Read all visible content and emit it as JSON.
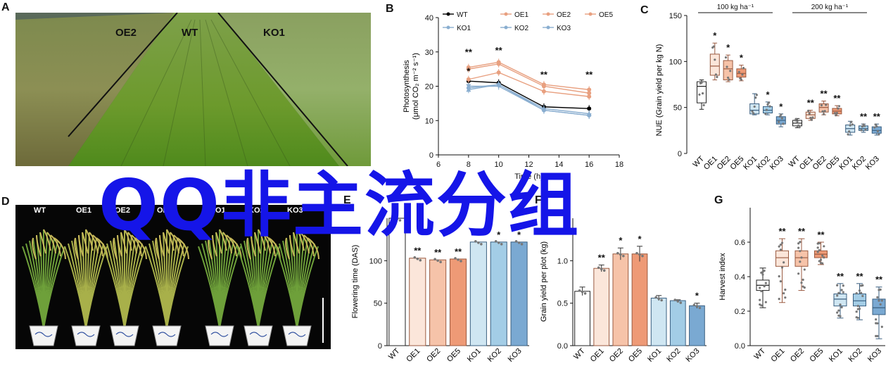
{
  "panels": {
    "a": {
      "letter": "A",
      "labels": [
        "OE2",
        "WT",
        "KO1"
      ]
    },
    "b": {
      "letter": "B"
    },
    "c": {
      "letter": "C"
    },
    "d": {
      "letter": "D",
      "labels": [
        "WT",
        "OE1",
        "OE2",
        "OE5",
        "KO1",
        "KO2",
        "KO3"
      ]
    },
    "e": {
      "letter": "E"
    },
    "f": {
      "letter": "F"
    },
    "g": {
      "letter": "G"
    }
  },
  "watermark": "QQ非主流分组",
  "colors": {
    "wt": "#000000",
    "oe": "#e8a080",
    "ko": "#8aaed0",
    "oe_fill": [
      "#fbe6da",
      "#f6c3a9",
      "#ee9a76"
    ],
    "ko_fill": [
      "#cfe6f2",
      "#a3cde6",
      "#7aa9d2"
    ],
    "watermark": "#1515e8"
  },
  "chart_data": [
    {
      "panel": "B",
      "type": "line",
      "xlabel": "Time (h)",
      "ylabel_line1": "Photosynthesis",
      "ylabel_line2": "(μmol CO₂ m⁻² s⁻¹)",
      "xlim": [
        6,
        18
      ],
      "ylim": [
        0,
        40
      ],
      "xticks": [
        "6",
        "8",
        "10",
        "12",
        "14",
        "16",
        "18"
      ],
      "yticks": [
        "0",
        "10",
        "20",
        "30",
        "40"
      ],
      "x": [
        8,
        10,
        13,
        16
      ],
      "series": [
        {
          "name": "WT",
          "group": "wt",
          "values": [
            21.5,
            21.0,
            14.0,
            13.5
          ]
        },
        {
          "name": "OE1",
          "group": "oe",
          "values": [
            25.5,
            27.0,
            20.5,
            19.0
          ]
        },
        {
          "name": "OE2",
          "group": "oe",
          "values": [
            25.0,
            26.5,
            20.0,
            18.0
          ]
        },
        {
          "name": "OE5",
          "group": "oe",
          "values": [
            22.0,
            24.0,
            18.5,
            17.0
          ]
        },
        {
          "name": "KO1",
          "group": "ko",
          "values": [
            19.0,
            20.5,
            13.5,
            12.0
          ]
        },
        {
          "name": "KO2",
          "group": "ko",
          "values": [
            20.0,
            20.0,
            13.0,
            11.5
          ]
        },
        {
          "name": "KO3",
          "group": "ko",
          "values": [
            19.5,
            20.5,
            13.0,
            11.5
          ]
        }
      ],
      "annotations": [
        {
          "x": 8,
          "y": 29,
          "text": "**"
        },
        {
          "x": 8,
          "y": 23.5,
          "text": "*"
        },
        {
          "x": 10,
          "y": 29.5,
          "text": "**"
        },
        {
          "x": 13,
          "y": 22.5,
          "text": "**"
        },
        {
          "x": 16,
          "y": 22.5,
          "text": "**"
        }
      ],
      "legend": "top"
    },
    {
      "panel": "C",
      "type": "box",
      "ylabel": "NUE (Grain yield per kg N)",
      "ylim": [
        0,
        150
      ],
      "yticks": [
        "0",
        "50",
        "100",
        "150"
      ],
      "group_labels": [
        "100 kg ha⁻¹",
        "200 kg ha⁻¹"
      ],
      "categories": [
        "WT",
        "OE1",
        "OE2",
        "OE5",
        "KO1",
        "KO2",
        "KO3",
        "WT",
        "OE1",
        "OE2",
        "OE5",
        "KO1",
        "KO2",
        "KO3"
      ],
      "boxes": [
        {
          "q1": 55,
          "med": 73,
          "q3": 78,
          "min": 48,
          "max": 80,
          "sig": ""
        },
        {
          "q1": 85,
          "med": 95,
          "q3": 108,
          "min": 80,
          "max": 120,
          "sig": "*"
        },
        {
          "q1": 80,
          "med": 92,
          "q3": 101,
          "min": 78,
          "max": 107,
          "sig": "*"
        },
        {
          "q1": 83,
          "med": 87,
          "q3": 92,
          "min": 79,
          "max": 96,
          "sig": "*"
        },
        {
          "q1": 43,
          "med": 47,
          "q3": 54,
          "min": 42,
          "max": 65,
          "sig": ""
        },
        {
          "q1": 44,
          "med": 47,
          "q3": 51,
          "min": 42,
          "max": 56,
          "sig": "*"
        },
        {
          "q1": 32,
          "med": 36,
          "q3": 40,
          "min": 29,
          "max": 43,
          "sig": "*"
        },
        {
          "q1": 30,
          "med": 33,
          "q3": 36,
          "min": 28,
          "max": 38,
          "sig": ""
        },
        {
          "q1": 38,
          "med": 42,
          "q3": 45,
          "min": 36,
          "max": 47,
          "sig": "**"
        },
        {
          "q1": 45,
          "med": 50,
          "q3": 54,
          "min": 42,
          "max": 57,
          "sig": "**"
        },
        {
          "q1": 43,
          "med": 46,
          "q3": 49,
          "min": 41,
          "max": 52,
          "sig": "**"
        },
        {
          "q1": 23,
          "med": 27,
          "q3": 31,
          "min": 20,
          "max": 35,
          "sig": ""
        },
        {
          "q1": 25,
          "med": 27,
          "q3": 30,
          "min": 23,
          "max": 32,
          "sig": "**"
        },
        {
          "q1": 22,
          "med": 25,
          "q3": 29,
          "min": 20,
          "max": 32,
          "sig": "**"
        }
      ]
    },
    {
      "panel": "E",
      "type": "bar",
      "ylabel": "Flowering time (DAS)",
      "ylim": [
        0,
        150
      ],
      "yticks": [
        "0",
        "50",
        "100"
      ],
      "categories": [
        "WT",
        "OE1",
        "OE2",
        "OE5",
        "KO1",
        "KO2",
        "KO3"
      ],
      "values": [
        150,
        103,
        101,
        102,
        122,
        122,
        122
      ],
      "sig": [
        "",
        "**",
        "**",
        "**",
        "*",
        "*",
        "*"
      ]
    },
    {
      "panel": "F",
      "type": "bar",
      "ylabel": "Grain yield per plot (kg)",
      "ylim": [
        0,
        1.5
      ],
      "yticks": [
        "0.0",
        "0.5",
        "1.0"
      ],
      "categories": [
        "WT",
        "OE1",
        "OE2",
        "OE5",
        "KO1",
        "KO2",
        "KO3"
      ],
      "values": [
        0.64,
        0.91,
        1.08,
        1.08,
        0.56,
        0.53,
        0.47
      ],
      "errors": [
        0.05,
        0.04,
        0.07,
        0.09,
        0.03,
        0.01,
        0.03
      ],
      "sig": [
        "",
        "**",
        "*",
        "*",
        "",
        "",
        "*"
      ]
    },
    {
      "panel": "G",
      "type": "box",
      "ylabel": "Harvest index",
      "ylim": [
        0,
        0.8
      ],
      "yticks": [
        "0.0",
        "0.2",
        "0.4",
        "0.6"
      ],
      "categories": [
        "WT",
        "OE1",
        "OE2",
        "OE5",
        "KO1",
        "KO2",
        "KO3"
      ],
      "boxes": [
        {
          "q1": 0.32,
          "med": 0.35,
          "q3": 0.38,
          "min": 0.22,
          "max": 0.45,
          "sig": ""
        },
        {
          "q1": 0.46,
          "med": 0.51,
          "q3": 0.55,
          "min": 0.25,
          "max": 0.62,
          "sig": "**"
        },
        {
          "q1": 0.46,
          "med": 0.51,
          "q3": 0.55,
          "min": 0.32,
          "max": 0.62,
          "sig": "**"
        },
        {
          "q1": 0.51,
          "med": 0.53,
          "q3": 0.55,
          "min": 0.47,
          "max": 0.6,
          "sig": "**"
        },
        {
          "q1": 0.23,
          "med": 0.27,
          "q3": 0.3,
          "min": 0.16,
          "max": 0.36,
          "sig": "**"
        },
        {
          "q1": 0.23,
          "med": 0.26,
          "q3": 0.3,
          "min": 0.15,
          "max": 0.36,
          "sig": "**"
        },
        {
          "q1": 0.18,
          "med": 0.22,
          "q3": 0.27,
          "min": 0.04,
          "max": 0.34,
          "sig": "**"
        }
      ]
    }
  ]
}
